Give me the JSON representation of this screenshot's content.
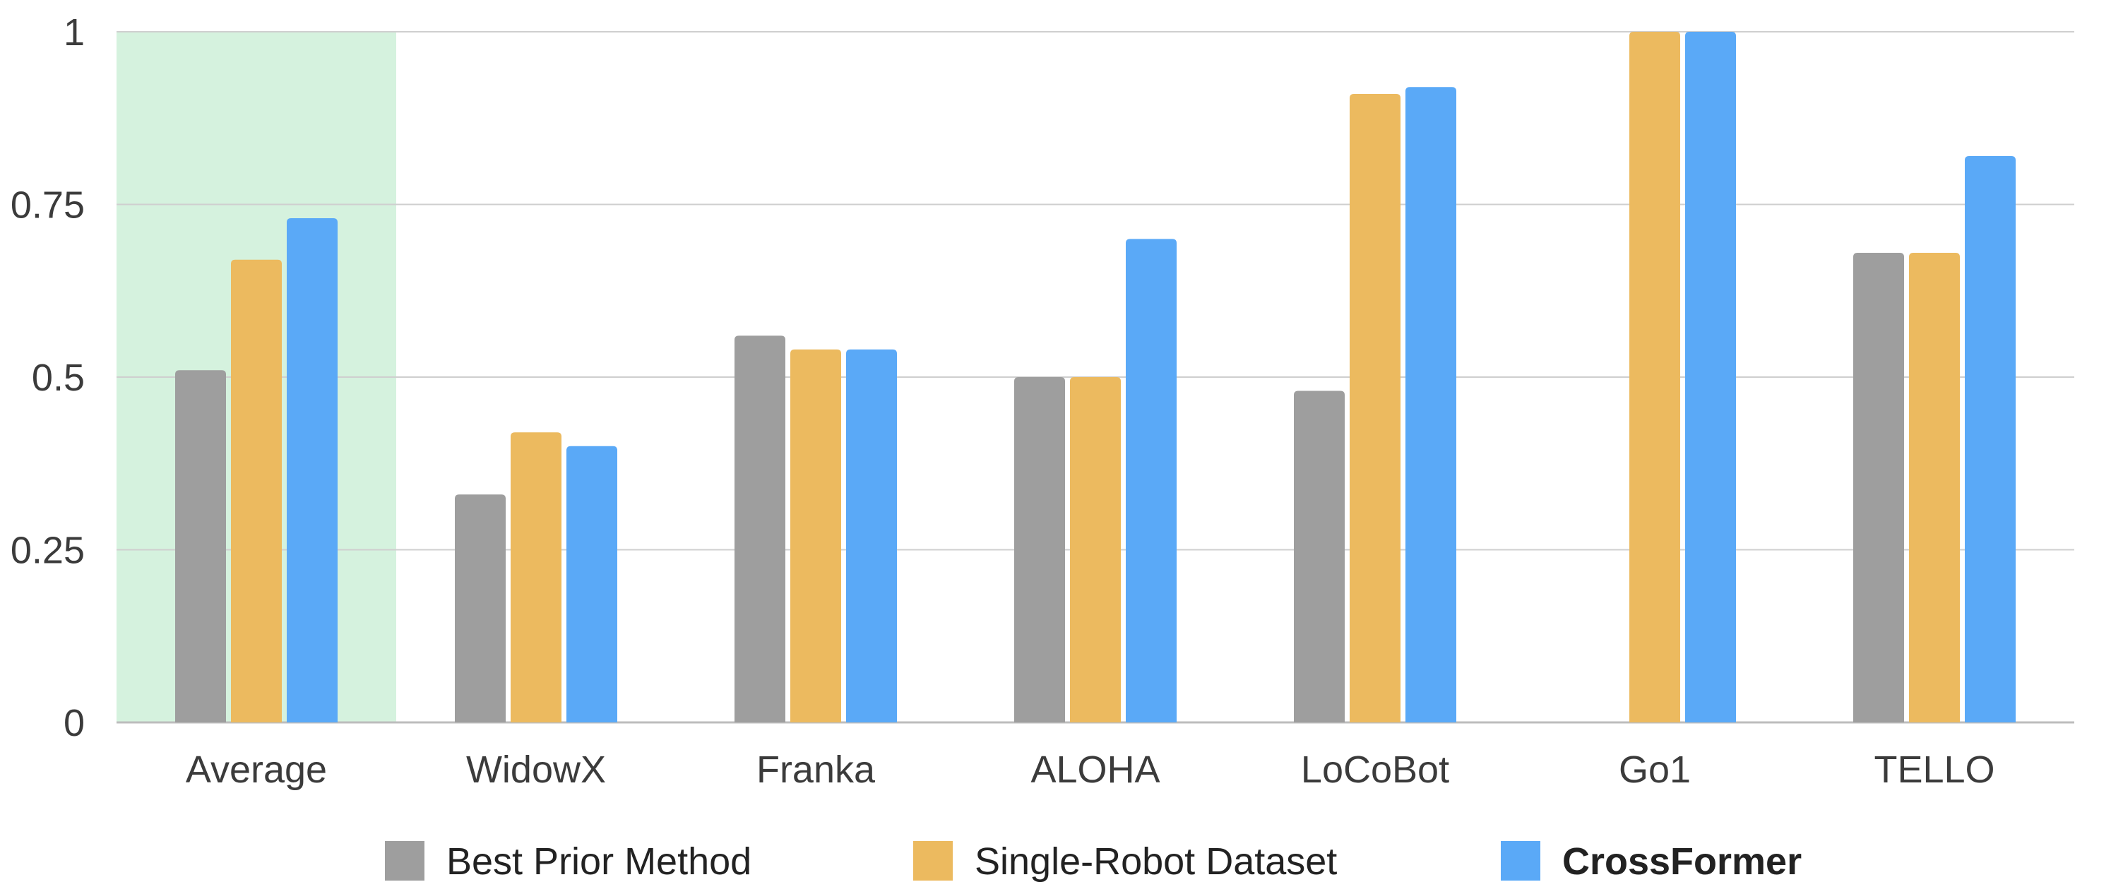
{
  "chart_data": {
    "type": "bar",
    "categories": [
      "Average",
      "WidowX",
      "Franka",
      "ALOHA",
      "LoCoBot",
      "Go1",
      "TELLO"
    ],
    "series": [
      {
        "name": "Best Prior Method",
        "color": "#9e9e9e",
        "values": [
          0.51,
          0.33,
          0.56,
          0.5,
          0.48,
          null,
          0.68
        ]
      },
      {
        "name": "Single-Robot Dataset",
        "color": "#ecba5f",
        "values": [
          0.67,
          0.42,
          0.54,
          0.5,
          0.91,
          1.0,
          0.68
        ]
      },
      {
        "name": "CrossFormer",
        "color": "#5aa9f7",
        "values": [
          0.73,
          0.4,
          0.54,
          0.7,
          0.92,
          1.0,
          0.82
        ],
        "bold": true
      }
    ],
    "ylim": [
      0,
      1
    ],
    "yticks": [
      0,
      0.25,
      0.5,
      0.75,
      1
    ],
    "ytick_labels": [
      "0",
      "0.25",
      "0.5",
      "0.75",
      "1"
    ],
    "highlight_category": "Average",
    "highlight_color": "#d5f2de",
    "grid": true,
    "legend_position": "bottom"
  }
}
